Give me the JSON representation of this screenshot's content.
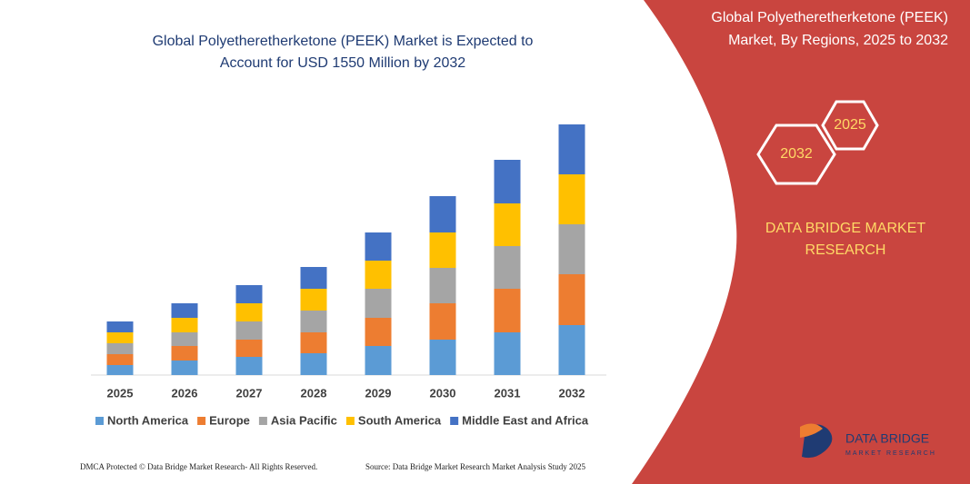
{
  "chart_data": {
    "type": "stacked-bar",
    "title": [
      "Global Polyetheretherketone (PEEK) Market is Expected to",
      "Account for USD 1550 Million by 2032"
    ],
    "categories": [
      "2025",
      "2026",
      "2027",
      "2028",
      "2029",
      "2030",
      "2031",
      "2032"
    ],
    "series": [
      {
        "name": "North America",
        "color": "#5b9bd5",
        "values": [
          11,
          16,
          20,
          24,
          32,
          39,
          47,
          55
        ]
      },
      {
        "name": "Europe",
        "color": "#ed7d31",
        "values": [
          12,
          16,
          19,
          23,
          31,
          40,
          48,
          56
        ]
      },
      {
        "name": "Asia Pacific",
        "color": "#a5a5a5",
        "values": [
          12,
          15,
          20,
          24,
          32,
          39,
          47,
          55
        ]
      },
      {
        "name": "South America",
        "color": "#ffc000",
        "values": [
          12,
          16,
          20,
          24,
          31,
          39,
          47,
          55
        ]
      },
      {
        "name": "Middle East and Africa",
        "color": "#4472c4",
        "values": [
          12,
          16,
          20,
          24,
          31,
          40,
          48,
          55
        ]
      }
    ],
    "ylim": [
      0,
      280
    ],
    "legend": "bottom"
  },
  "panel": {
    "title": [
      "Global Polyetheretherketone (PEEK)",
      "Market, By Regions, 2025 to 2032"
    ],
    "hex_start": "2025",
    "hex_end": "2032",
    "brand": [
      "DATA BRIDGE MARKET",
      "RESEARCH"
    ],
    "logo": "DATA BRIDGE",
    "logo_tagline": "MARKET RESEARCH"
  },
  "footer": {
    "left": "DMCA Protected © Data Bridge Market Research- All Rights Reserved.",
    "right": "Source: Data Bridge Market Research Market Analysis Study 2025"
  }
}
